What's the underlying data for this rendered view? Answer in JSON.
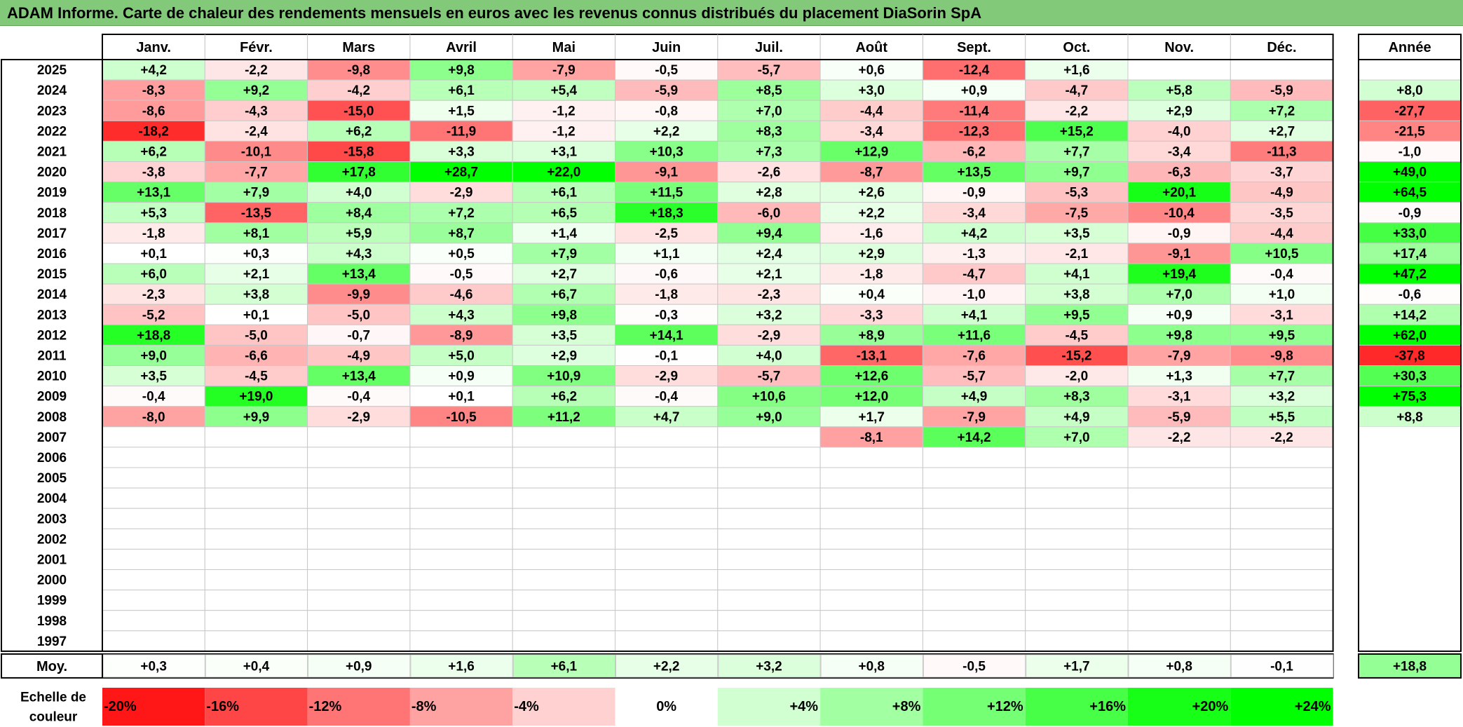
{
  "title": "ADAM Informe. Carte de chaleur des rendements mensuels en euros avec les revenus connus distribués du placement DiaSorin SpA",
  "chart_data": {
    "type": "heatmap",
    "title": "ADAM Informe. Carte de chaleur des rendements mensuels en euros avec les revenus connus distribués du placement DiaSorin SpA",
    "columns": [
      "Janv.",
      "Févr.",
      "Mars",
      "Avril",
      "Mai",
      "Juin",
      "Juil.",
      "Août",
      "Sept.",
      "Oct.",
      "Nov.",
      "Déc."
    ],
    "year_header": "Année",
    "avg_label": "Moy.",
    "rows": [
      {
        "label": "2025",
        "values": [
          "+4,2",
          "-2,2",
          "-9,8",
          "+9,8",
          "-7,9",
          "-0,5",
          "-5,7",
          "+0,6",
          "-12,4",
          "+1,6",
          "",
          ""
        ],
        "year": ""
      },
      {
        "label": "2024",
        "values": [
          "-8,3",
          "+9,2",
          "-4,2",
          "+6,1",
          "+5,4",
          "-5,9",
          "+8,5",
          "+3,0",
          "+0,9",
          "-4,7",
          "+5,8",
          "-5,9"
        ],
        "year": "+8,0"
      },
      {
        "label": "2023",
        "values": [
          "-8,6",
          "-4,3",
          "-15,0",
          "+1,5",
          "-1,2",
          "-0,8",
          "+7,0",
          "-4,4",
          "-11,4",
          "-2,2",
          "+2,9",
          "+7,2"
        ],
        "year": "-27,7"
      },
      {
        "label": "2022",
        "values": [
          "-18,2",
          "-2,4",
          "+6,2",
          "-11,9",
          "-1,2",
          "+2,2",
          "+8,3",
          "-3,4",
          "-12,3",
          "+15,2",
          "-4,0",
          "+2,7"
        ],
        "year": "-21,5"
      },
      {
        "label": "2021",
        "values": [
          "+6,2",
          "-10,1",
          "-15,8",
          "+3,3",
          "+3,1",
          "+10,3",
          "+7,3",
          "+12,9",
          "-6,2",
          "+7,7",
          "-3,4",
          "-11,3"
        ],
        "year": "-1,0"
      },
      {
        "label": "2020",
        "values": [
          "-3,8",
          "-7,7",
          "+17,8",
          "+28,7",
          "+22,0",
          "-9,1",
          "-2,6",
          "-8,7",
          "+13,5",
          "+9,7",
          "-6,3",
          "-3,7"
        ],
        "year": "+49,0"
      },
      {
        "label": "2019",
        "values": [
          "+13,1",
          "+7,9",
          "+4,0",
          "-2,9",
          "+6,1",
          "+11,5",
          "+2,8",
          "+2,6",
          "-0,9",
          "-5,3",
          "+20,1",
          "-4,9"
        ],
        "year": "+64,5"
      },
      {
        "label": "2018",
        "values": [
          "+5,3",
          "-13,5",
          "+8,4",
          "+7,2",
          "+6,5",
          "+18,3",
          "-6,0",
          "+2,2",
          "-3,4",
          "-7,5",
          "-10,4",
          "-3,5"
        ],
        "year": "-0,9"
      },
      {
        "label": "2017",
        "values": [
          "-1,8",
          "+8,1",
          "+5,9",
          "+8,7",
          "+1,4",
          "-2,5",
          "+9,4",
          "-1,6",
          "+4,2",
          "+3,5",
          "-0,9",
          "-4,4"
        ],
        "year": "+33,0"
      },
      {
        "label": "2016",
        "values": [
          "+0,1",
          "+0,3",
          "+4,3",
          "+0,5",
          "+7,9",
          "+1,1",
          "+2,4",
          "+2,9",
          "-1,3",
          "-2,1",
          "-9,1",
          "+10,5"
        ],
        "year": "+17,4"
      },
      {
        "label": "2015",
        "values": [
          "+6,0",
          "+2,1",
          "+13,4",
          "-0,5",
          "+2,7",
          "-0,6",
          "+2,1",
          "-1,8",
          "-4,7",
          "+4,1",
          "+19,4",
          "-0,4"
        ],
        "year": "+47,2"
      },
      {
        "label": "2014",
        "values": [
          "-2,3",
          "+3,8",
          "-9,9",
          "-4,6",
          "+6,7",
          "-1,8",
          "-2,3",
          "+0,4",
          "-1,0",
          "+3,8",
          "+7,0",
          "+1,0"
        ],
        "year": "-0,6"
      },
      {
        "label": "2013",
        "values": [
          "-5,2",
          "+0,1",
          "-5,0",
          "+4,3",
          "+9,8",
          "-0,3",
          "+3,2",
          "-3,3",
          "+4,1",
          "+9,5",
          "+0,9",
          "-3,1"
        ],
        "year": "+14,2"
      },
      {
        "label": "2012",
        "values": [
          "+18,8",
          "-5,0",
          "-0,7",
          "-8,9",
          "+3,5",
          "+14,1",
          "-2,9",
          "+8,9",
          "+11,6",
          "-4,5",
          "+9,8",
          "+9,5"
        ],
        "year": "+62,0"
      },
      {
        "label": "2011",
        "values": [
          "+9,0",
          "-6,6",
          "-4,9",
          "+5,0",
          "+2,9",
          "-0,1",
          "+4,0",
          "-13,1",
          "-7,6",
          "-15,2",
          "-7,9",
          "-9,8"
        ],
        "year": "-37,8"
      },
      {
        "label": "2010",
        "values": [
          "+3,5",
          "-4,5",
          "+13,4",
          "+0,9",
          "+10,9",
          "-2,9",
          "-5,7",
          "+12,6",
          "-5,7",
          "-2,0",
          "+1,3",
          "+7,7"
        ],
        "year": "+30,3"
      },
      {
        "label": "2009",
        "values": [
          "-0,4",
          "+19,0",
          "-0,4",
          "+0,1",
          "+6,2",
          "-0,4",
          "+10,6",
          "+12,0",
          "+4,9",
          "+8,3",
          "-3,1",
          "+3,2"
        ],
        "year": "+75,3"
      },
      {
        "label": "2008",
        "values": [
          "-8,0",
          "+9,9",
          "-2,9",
          "-10,5",
          "+11,2",
          "+4,7",
          "+9,0",
          "+1,7",
          "-7,9",
          "+4,9",
          "-5,9",
          "+5,5"
        ],
        "year": "+8,8"
      },
      {
        "label": "2007",
        "values": [
          "",
          "",
          "",
          "",
          "",
          "",
          "",
          "-8,1",
          "+14,2",
          "+7,0",
          "-2,2",
          "-2,2"
        ],
        "year": ""
      },
      {
        "label": "2006",
        "values": [
          "",
          "",
          "",
          "",
          "",
          "",
          "",
          "",
          "",
          "",
          "",
          ""
        ],
        "year": ""
      },
      {
        "label": "2005",
        "values": [
          "",
          "",
          "",
          "",
          "",
          "",
          "",
          "",
          "",
          "",
          "",
          ""
        ],
        "year": ""
      },
      {
        "label": "2004",
        "values": [
          "",
          "",
          "",
          "",
          "",
          "",
          "",
          "",
          "",
          "",
          "",
          ""
        ],
        "year": ""
      },
      {
        "label": "2003",
        "values": [
          "",
          "",
          "",
          "",
          "",
          "",
          "",
          "",
          "",
          "",
          "",
          ""
        ],
        "year": ""
      },
      {
        "label": "2002",
        "values": [
          "",
          "",
          "",
          "",
          "",
          "",
          "",
          "",
          "",
          "",
          "",
          ""
        ],
        "year": ""
      },
      {
        "label": "2001",
        "values": [
          "",
          "",
          "",
          "",
          "",
          "",
          "",
          "",
          "",
          "",
          "",
          ""
        ],
        "year": ""
      },
      {
        "label": "2000",
        "values": [
          "",
          "",
          "",
          "",
          "",
          "",
          "",
          "",
          "",
          "",
          "",
          ""
        ],
        "year": ""
      },
      {
        "label": "1999",
        "values": [
          "",
          "",
          "",
          "",
          "",
          "",
          "",
          "",
          "",
          "",
          "",
          ""
        ],
        "year": ""
      },
      {
        "label": "1998",
        "values": [
          "",
          "",
          "",
          "",
          "",
          "",
          "",
          "",
          "",
          "",
          "",
          ""
        ],
        "year": ""
      },
      {
        "label": "1997",
        "values": [
          "",
          "",
          "",
          "",
          "",
          "",
          "",
          "",
          "",
          "",
          "",
          ""
        ],
        "year": ""
      }
    ],
    "avg": {
      "values": [
        "+0,3",
        "+0,4",
        "+0,9",
        "+1,6",
        "+6,1",
        "+2,2",
        "+3,2",
        "+0,8",
        "-0,5",
        "+1,7",
        "+0,8",
        "-0,1"
      ],
      "year": "+18,8"
    },
    "scale": {
      "label_line1": "Echelle de",
      "label_line2": "couleur",
      "stops": [
        {
          "label": "-20%",
          "value": -20
        },
        {
          "label": "-16%",
          "value": -16
        },
        {
          "label": "-12%",
          "value": -12
        },
        {
          "label": "-8%",
          "value": -8
        },
        {
          "label": "-4%",
          "value": -4
        },
        {
          "label": "0%",
          "value": 0
        },
        {
          "label": "+4%",
          "value": 4
        },
        {
          "label": "+8%",
          "value": 8
        },
        {
          "label": "+12%",
          "value": 12
        },
        {
          "label": "+16%",
          "value": 16
        },
        {
          "label": "+20%",
          "value": 20
        },
        {
          "label": "+24%",
          "value": 24
        }
      ]
    },
    "colors": {
      "negative_max": "#ff0000",
      "neutral": "#ffffff",
      "positive_max": "#00ff00",
      "title_bar": "#83c97a"
    }
  }
}
